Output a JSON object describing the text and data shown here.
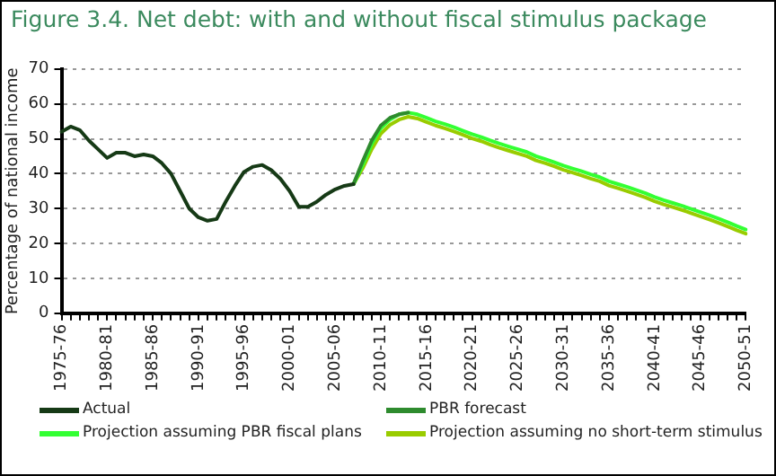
{
  "chart_data": {
    "type": "line",
    "title": "Figure 3.4. Net debt: with and without fiscal stimulus package",
    "ylabel": "Percentage of national income",
    "categories": [
      "1975-76",
      null,
      null,
      null,
      null,
      "1980-81",
      null,
      null,
      null,
      null,
      "1985-86",
      null,
      null,
      null,
      null,
      "1990-91",
      null,
      null,
      null,
      null,
      "1995-96",
      null,
      null,
      null,
      null,
      "2000-01",
      null,
      null,
      null,
      null,
      "2005-06",
      null,
      null,
      null,
      null,
      "2010-11",
      null,
      null,
      null,
      null,
      "2015-16",
      null,
      null,
      null,
      null,
      "2020-21",
      null,
      null,
      null,
      null,
      "2025-26",
      null,
      null,
      null,
      null,
      "2030-31",
      null,
      null,
      null,
      null,
      "2035-36",
      null,
      null,
      null,
      null,
      "2040-41",
      null,
      null,
      null,
      null,
      "2045-46",
      null,
      null,
      null,
      null,
      "2050-51"
    ],
    "ylim": [
      0,
      70
    ],
    "yticks": [
      0,
      10,
      20,
      30,
      40,
      50,
      60,
      70
    ],
    "grid": "y",
    "legend": "bottom",
    "marker": "none",
    "line_style": "solid",
    "series": [
      {
        "name": "Actual",
        "color": "#163a16",
        "values": [
          52,
          53.5,
          52.5,
          49.5,
          47,
          44.5,
          46,
          46,
          45,
          45.5,
          45,
          43,
          40,
          35,
          30,
          27.5,
          26.5,
          27,
          32,
          36.5,
          40.5,
          42,
          42.5,
          41,
          38.5,
          35,
          30.5,
          30.5,
          32,
          34,
          35.5,
          36.5,
          37,
          null,
          null,
          null,
          null,
          null,
          null,
          null,
          null,
          null,
          null,
          null,
          null,
          null,
          null,
          null,
          null,
          null,
          null,
          null,
          null,
          null,
          null,
          null,
          null,
          null,
          null,
          null,
          null,
          null,
          null,
          null,
          null,
          null,
          null,
          null,
          null,
          null,
          null,
          null,
          null,
          null,
          null,
          null
        ]
      },
      {
        "name": "PBR forecast",
        "color": "#2e8b2e",
        "values": [
          null,
          null,
          null,
          null,
          null,
          null,
          null,
          null,
          null,
          null,
          null,
          null,
          null,
          null,
          null,
          null,
          null,
          null,
          null,
          null,
          null,
          null,
          null,
          null,
          null,
          null,
          null,
          null,
          null,
          null,
          null,
          null,
          37,
          43.5,
          49.5,
          53.8,
          56,
          57,
          57.5,
          null,
          null,
          null,
          null,
          null,
          null,
          null,
          null,
          null,
          null,
          null,
          null,
          null,
          null,
          null,
          null,
          null,
          null,
          null,
          null,
          null,
          null,
          null,
          null,
          null,
          null,
          null,
          null,
          null,
          null,
          null,
          null,
          null,
          null,
          null,
          null,
          null
        ]
      },
      {
        "name": "Projection assuming PBR fiscal plans",
        "color": "#33ff33",
        "values": [
          null,
          null,
          null,
          null,
          null,
          null,
          null,
          null,
          null,
          null,
          null,
          null,
          null,
          null,
          null,
          null,
          null,
          null,
          null,
          null,
          null,
          null,
          null,
          null,
          null,
          null,
          null,
          null,
          null,
          null,
          null,
          null,
          37,
          42.5,
          48.5,
          53,
          55.5,
          57,
          57.5,
          57,
          56,
          55,
          54.2,
          53.3,
          52.3,
          51.3,
          50.5,
          49.5,
          48.6,
          47.8,
          47,
          46.2,
          45,
          44.2,
          43.3,
          42.3,
          41.5,
          40.7,
          39.8,
          39,
          37.8,
          37,
          36.2,
          35.3,
          34.4,
          33.3,
          32.4,
          31.6,
          30.8,
          29.9,
          29,
          28.1,
          27.1,
          26.1,
          25,
          24
        ]
      },
      {
        "name": "Projection assuming no short-term stimulus",
        "color": "#99cc00",
        "values": [
          null,
          null,
          null,
          null,
          null,
          null,
          null,
          null,
          null,
          null,
          null,
          null,
          null,
          null,
          null,
          null,
          null,
          null,
          null,
          null,
          null,
          null,
          null,
          null,
          null,
          null,
          null,
          null,
          null,
          null,
          null,
          null,
          37,
          41.5,
          47,
          51.5,
          54,
          55.5,
          56.3,
          55.8,
          54.8,
          53.8,
          53,
          52.1,
          51.1,
          50.1,
          49.3,
          48.3,
          47.4,
          46.6,
          45.8,
          45,
          43.8,
          43,
          42.1,
          41.1,
          40.3,
          39.5,
          38.6,
          37.8,
          36.6,
          35.8,
          35,
          34.1,
          33.2,
          32.1,
          31.2,
          30.4,
          29.6,
          28.7,
          27.8,
          26.9,
          25.9,
          24.9,
          23.8,
          22.8
        ]
      }
    ]
  }
}
